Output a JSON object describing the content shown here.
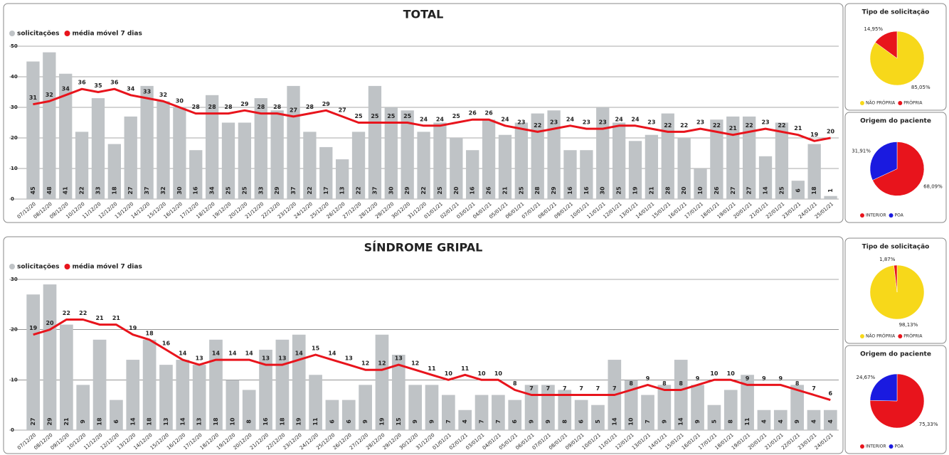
{
  "chart_data": [
    {
      "type": "bar",
      "title": "TOTAL",
      "categories": [
        "07/12/20",
        "08/12/20",
        "09/12/20",
        "10/12/20",
        "11/12/20",
        "12/12/20",
        "13/12/20",
        "14/12/20",
        "15/12/20",
        "16/12/20",
        "17/12/20",
        "18/12/20",
        "19/12/20",
        "20/12/20",
        "21/12/20",
        "22/12/20",
        "23/12/20",
        "24/12/20",
        "25/12/20",
        "26/12/20",
        "27/12/20",
        "28/12/20",
        "29/12/20",
        "30/12/20",
        "31/12/20",
        "01/01/21",
        "02/01/21",
        "03/01/21",
        "04/01/21",
        "05/01/21",
        "06/01/21",
        "07/01/21",
        "08/01/21",
        "09/01/21",
        "10/01/21",
        "11/01/21",
        "12/01/21",
        "13/01/21",
        "14/01/21",
        "15/01/21",
        "16/01/21",
        "17/01/21",
        "18/01/21",
        "19/01/21",
        "20/01/21",
        "21/01/21",
        "22/01/21",
        "23/01/21",
        "24/01/21",
        "25/01/21"
      ],
      "series": [
        {
          "name": "solicitações",
          "type": "bar",
          "color": "#bfc3c6",
          "values": [
            45,
            48,
            41,
            22,
            33,
            18,
            27,
            37,
            32,
            30,
            16,
            34,
            25,
            25,
            33,
            29,
            37,
            22,
            17,
            13,
            22,
            37,
            30,
            29,
            22,
            25,
            20,
            16,
            26,
            21,
            25,
            28,
            29,
            16,
            16,
            30,
            25,
            19,
            21,
            28,
            20,
            10,
            26,
            27,
            27,
            14,
            25,
            6,
            18,
            1
          ]
        },
        {
          "name": "média móvel 7 dias",
          "type": "line",
          "color": "#e8141c",
          "values": [
            31,
            32,
            34,
            36,
            35,
            36,
            34,
            33,
            32,
            30,
            28,
            28,
            28,
            29,
            28,
            28,
            27,
            28,
            29,
            27,
            25,
            25,
            25,
            25,
            24,
            24,
            25,
            26,
            26,
            24,
            23,
            22,
            23,
            24,
            23,
            23,
            24,
            24,
            23,
            22,
            22,
            23,
            22,
            21,
            22,
            23,
            22,
            21,
            19,
            20
          ]
        }
      ],
      "ylim": [
        0,
        50
      ],
      "yticks": [
        0,
        10,
        20,
        30,
        40,
        50
      ],
      "grid": true
    },
    {
      "type": "pie",
      "title": "Tipo de solicitação",
      "categories": [
        "NÃO PRÓPRIA",
        "PRÓPRIA"
      ],
      "values": [
        85.05,
        14.95
      ],
      "value_labels": [
        "85,05%",
        "14,95%"
      ],
      "colors": [
        "#f7d81a",
        "#e8141c"
      ]
    },
    {
      "type": "pie",
      "title": "Origem do paciente",
      "categories": [
        "INTERIOR",
        "POA"
      ],
      "values": [
        68.09,
        31.91
      ],
      "value_labels": [
        "68,09%",
        "31,91%"
      ],
      "colors": [
        "#e8141c",
        "#1a1ae0"
      ]
    },
    {
      "type": "bar",
      "title": "SÍNDROME GRIPAL",
      "categories": [
        "07/12/20",
        "08/12/20",
        "09/12/20",
        "10/12/20",
        "11/12/20",
        "12/12/20",
        "13/12/20",
        "14/12/20",
        "15/12/20",
        "16/12/20",
        "17/12/20",
        "18/12/20",
        "19/12/20",
        "20/12/20",
        "21/12/20",
        "22/12/20",
        "23/12/20",
        "24/12/20",
        "25/12/20",
        "26/12/20",
        "27/12/20",
        "28/12/20",
        "29/12/20",
        "30/12/20",
        "31/12/20",
        "01/01/21",
        "02/01/21",
        "03/01/21",
        "04/01/21",
        "05/01/21",
        "06/01/21",
        "07/01/21",
        "08/01/21",
        "09/01/21",
        "10/01/21",
        "11/01/21",
        "12/01/21",
        "13/01/21",
        "14/01/21",
        "15/01/21",
        "16/01/21",
        "17/01/21",
        "18/01/21",
        "19/01/21",
        "20/01/21",
        "21/01/21",
        "22/01/21",
        "23/01/21",
        "24/01/21"
      ],
      "series": [
        {
          "name": "solicitações",
          "type": "bar",
          "color": "#bfc3c6",
          "values": [
            27,
            29,
            21,
            9,
            18,
            6,
            14,
            18,
            13,
            14,
            13,
            18,
            10,
            8,
            16,
            18,
            19,
            11,
            6,
            6,
            9,
            19,
            15,
            9,
            9,
            7,
            4,
            7,
            7,
            6,
            9,
            9,
            8,
            6,
            5,
            14,
            10,
            7,
            9,
            14,
            9,
            5,
            8,
            11,
            4,
            4,
            9,
            4,
            4
          ]
        },
        {
          "name": "média móvel 7 dias",
          "type": "line",
          "color": "#e8141c",
          "values": [
            19,
            20,
            22,
            22,
            21,
            21,
            19,
            18,
            16,
            14,
            13,
            14,
            14,
            14,
            13,
            13,
            14,
            15,
            14,
            13,
            12,
            12,
            13,
            12,
            11,
            10,
            11,
            10,
            10,
            8,
            7,
            7,
            7,
            7,
            7,
            7,
            8,
            9,
            8,
            8,
            9,
            10,
            10,
            9,
            9,
            9,
            8,
            7,
            6
          ]
        }
      ],
      "ylim": [
        0,
        30
      ],
      "yticks": [
        0,
        10,
        20,
        30
      ],
      "grid": true
    },
    {
      "type": "pie",
      "title": "Tipo de solicitação",
      "categories": [
        "NÃO PRÓPRIA",
        "PRÓPRIA"
      ],
      "values": [
        98.13,
        1.87
      ],
      "value_labels": [
        "98,13%",
        "1,87%"
      ],
      "colors": [
        "#f7d81a",
        "#e8141c"
      ]
    },
    {
      "type": "pie",
      "title": "Origem do paciente",
      "categories": [
        "INTERIOR",
        "POA"
      ],
      "values": [
        75.33,
        24.67
      ],
      "value_labels": [
        "75,33%",
        "24,67%"
      ],
      "colors": [
        "#e8141c",
        "#1a1ae0"
      ]
    }
  ]
}
